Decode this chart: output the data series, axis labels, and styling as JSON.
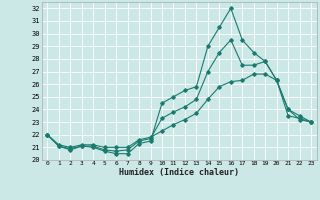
{
  "xlabel": "Humidex (Indice chaleur)",
  "bg_color": "#cce8e6",
  "grid_color": "#ffffff",
  "line_color": "#1a7a6e",
  "xlim": [
    -0.5,
    23.5
  ],
  "ylim": [
    20,
    32.5
  ],
  "yticks": [
    20,
    21,
    22,
    23,
    24,
    25,
    26,
    27,
    28,
    29,
    30,
    31,
    32
  ],
  "xticks": [
    0,
    1,
    2,
    3,
    4,
    5,
    6,
    7,
    8,
    9,
    10,
    11,
    12,
    13,
    14,
    15,
    16,
    17,
    18,
    19,
    20,
    21,
    22,
    23
  ],
  "series": [
    {
      "x": [
        0,
        1,
        2,
        3,
        4,
        5,
        6,
        7,
        8,
        9,
        10,
        11,
        12,
        13,
        14,
        15,
        16,
        17,
        18,
        19,
        20,
        21,
        22,
        23
      ],
      "y": [
        22,
        21.1,
        20.8,
        21.1,
        21.0,
        20.7,
        20.5,
        20.5,
        21.3,
        21.5,
        24.5,
        25.0,
        25.5,
        25.8,
        29.0,
        30.5,
        32.0,
        29.5,
        28.5,
        27.8,
        26.3,
        24.0,
        23.2,
        23.0
      ]
    },
    {
      "x": [
        0,
        1,
        2,
        3,
        4,
        5,
        6,
        7,
        8,
        9,
        10,
        11,
        12,
        13,
        14,
        15,
        16,
        17,
        18,
        19,
        20,
        21,
        22,
        23
      ],
      "y": [
        22,
        21.1,
        20.9,
        21.1,
        21.1,
        20.8,
        20.7,
        20.8,
        21.5,
        21.7,
        23.3,
        23.8,
        24.2,
        24.8,
        27.0,
        28.5,
        29.5,
        27.5,
        27.5,
        27.8,
        26.3,
        24.0,
        23.5,
        23.0
      ]
    },
    {
      "x": [
        0,
        1,
        2,
        3,
        4,
        5,
        6,
        7,
        8,
        9,
        10,
        11,
        12,
        13,
        14,
        15,
        16,
        17,
        18,
        19,
        20,
        21,
        22,
        23
      ],
      "y": [
        22,
        21.2,
        21.0,
        21.2,
        21.2,
        21.0,
        21.0,
        21.0,
        21.6,
        21.8,
        22.3,
        22.8,
        23.2,
        23.7,
        24.8,
        25.8,
        26.2,
        26.3,
        26.8,
        26.8,
        26.3,
        23.5,
        23.3,
        23.0
      ]
    }
  ]
}
